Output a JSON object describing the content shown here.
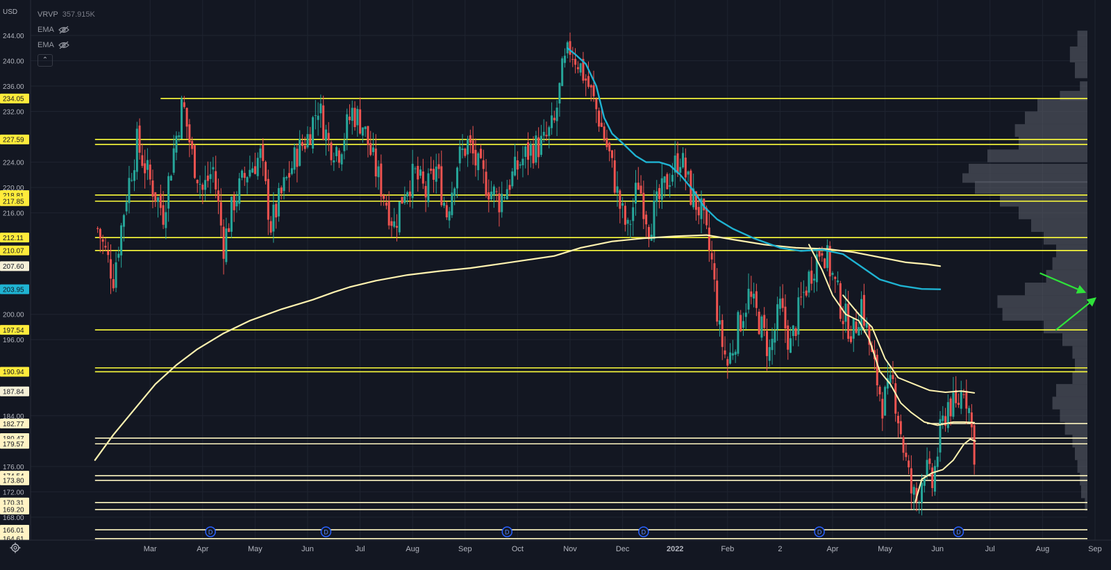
{
  "currency": "USD",
  "legend": [
    {
      "name": "VRVP",
      "value": "357.915K",
      "eye": false
    },
    {
      "name": "EMA",
      "value": "",
      "eye": true
    },
    {
      "name": "EMA",
      "value": "",
      "eye": true
    }
  ],
  "collapse_glyph": "⌃",
  "chart_data": {
    "type": "line",
    "xlabel": "",
    "ylabel": "",
    "ylim": [
      164.5,
      246.5
    ],
    "price_ticks": [
      244.0,
      240.0,
      236.0,
      232.0,
      224.0,
      220.0,
      216.0,
      200.0,
      196.0,
      184.0,
      176.0,
      172.0,
      168.0
    ],
    "time_labels": [
      {
        "label": "Mar",
        "m": 2
      },
      {
        "label": "Apr",
        "m": 3
      },
      {
        "label": "May",
        "m": 4
      },
      {
        "label": "Jun",
        "m": 5
      },
      {
        "label": "Jul",
        "m": 6
      },
      {
        "label": "Aug",
        "m": 7
      },
      {
        "label": "Sep",
        "m": 8
      },
      {
        "label": "Oct",
        "m": 9
      },
      {
        "label": "Nov",
        "m": 10
      },
      {
        "label": "Dec",
        "m": 11
      },
      {
        "label": "2022",
        "m": 12,
        "bold": true
      },
      {
        "label": "Feb",
        "m": 13
      },
      {
        "label": "2",
        "m": 14
      },
      {
        "label": "Apr",
        "m": 15
      },
      {
        "label": "May",
        "m": 16
      },
      {
        "label": "Jun",
        "m": 17
      },
      {
        "label": "Jul",
        "m": 18
      },
      {
        "label": "Aug",
        "m": 19
      },
      {
        "label": "Sep",
        "m": 20
      }
    ],
    "levels": [
      {
        "value": 234.05,
        "label": "234.05",
        "style": "yellow",
        "labeled": true,
        "start_m": 2.2
      },
      {
        "value": 227.59,
        "label": "227.59",
        "style": "yellow",
        "labeled": true,
        "start_m": 0.95
      },
      {
        "value": 226.8,
        "label": "",
        "style": "yellow",
        "labeled": false,
        "start_m": 0.95
      },
      {
        "value": 218.81,
        "label": "218.81",
        "style": "yellow",
        "labeled": true,
        "start_m": 0.95
      },
      {
        "value": 217.85,
        "label": "217.85",
        "style": "yellow",
        "labeled": true,
        "start_m": 0.95
      },
      {
        "value": 212.11,
        "label": "212.11",
        "style": "yellow",
        "labeled": true,
        "start_m": 0.95
      },
      {
        "value": 210.07,
        "label": "210.07",
        "style": "yellow",
        "labeled": true,
        "start_m": 0.95
      },
      {
        "value": 197.54,
        "label": "197.54",
        "style": "yellow",
        "labeled": true,
        "start_m": 0.95
      },
      {
        "value": 191.55,
        "label": "191.55",
        "style": "yellow",
        "labeled": false,
        "start_m": 0.95
      },
      {
        "value": 190.94,
        "label": "190.94",
        "style": "yellow",
        "labeled": true,
        "start_m": 0.95
      },
      {
        "value": 182.77,
        "label": "182.77",
        "style": "cream",
        "labeled": true,
        "start_m": 16.8
      },
      {
        "value": 180.47,
        "label": "180.47",
        "style": "cream",
        "labeled": true,
        "start_m": 0.95
      },
      {
        "value": 179.57,
        "label": "179.57",
        "style": "cream",
        "labeled": true,
        "start_m": 0.95
      },
      {
        "value": 174.54,
        "label": "174.54",
        "style": "cream",
        "labeled": true,
        "start_m": 0.95
      },
      {
        "value": 173.8,
        "label": "173.80",
        "style": "cream",
        "labeled": true,
        "start_m": 0.95
      },
      {
        "value": 170.31,
        "label": "170.31",
        "style": "cream",
        "labeled": true,
        "start_m": 0.95
      },
      {
        "value": 169.2,
        "label": "169.20",
        "style": "cream",
        "labeled": true,
        "start_m": 0.95
      },
      {
        "value": 166.01,
        "label": "166.01",
        "style": "cream",
        "labeled": true,
        "start_m": 0.95
      },
      {
        "value": 164.61,
        "label": "164.61",
        "style": "cream",
        "labeled": true,
        "start_m": 0.95
      }
    ],
    "current_price_labels": [
      {
        "value": 187.84,
        "label": "187.84",
        "style": "price"
      },
      {
        "value": 207.6,
        "label": "207.60",
        "style": "price"
      },
      {
        "value": 203.95,
        "label": "203.95",
        "style": "cyan"
      }
    ],
    "close_series": [
      {
        "m": 1.0,
        "c": 213.5
      },
      {
        "m": 1.3,
        "c": 206.0
      },
      {
        "m": 1.55,
        "c": 219.0
      },
      {
        "m": 1.75,
        "c": 227.0
      },
      {
        "m": 2.0,
        "c": 221.0
      },
      {
        "m": 2.25,
        "c": 216.0
      },
      {
        "m": 2.45,
        "c": 226.0
      },
      {
        "m": 2.62,
        "c": 233.5
      },
      {
        "m": 2.8,
        "c": 225.0
      },
      {
        "m": 3.0,
        "c": 219.5
      },
      {
        "m": 3.2,
        "c": 223.0
      },
      {
        "m": 3.4,
        "c": 211.0
      },
      {
        "m": 3.6,
        "c": 218.0
      },
      {
        "m": 3.85,
        "c": 222.5
      },
      {
        "m": 4.1,
        "c": 225.0
      },
      {
        "m": 4.3,
        "c": 214.0
      },
      {
        "m": 4.55,
        "c": 220.0
      },
      {
        "m": 4.8,
        "c": 225.5
      },
      {
        "m": 5.0,
        "c": 228.0
      },
      {
        "m": 5.2,
        "c": 233.0
      },
      {
        "m": 5.4,
        "c": 227.0
      },
      {
        "m": 5.6,
        "c": 226.0
      },
      {
        "m": 5.85,
        "c": 232.0
      },
      {
        "m": 6.05,
        "c": 230.0
      },
      {
        "m": 6.25,
        "c": 224.0
      },
      {
        "m": 6.45,
        "c": 219.0
      },
      {
        "m": 6.65,
        "c": 214.0
      },
      {
        "m": 6.85,
        "c": 220.0
      },
      {
        "m": 7.05,
        "c": 222.0
      },
      {
        "m": 7.25,
        "c": 219.0
      },
      {
        "m": 7.45,
        "c": 223.0
      },
      {
        "m": 7.65,
        "c": 216.0
      },
      {
        "m": 7.85,
        "c": 224.0
      },
      {
        "m": 8.05,
        "c": 227.0
      },
      {
        "m": 8.25,
        "c": 223.0
      },
      {
        "m": 8.45,
        "c": 220.0
      },
      {
        "m": 8.65,
        "c": 218.0
      },
      {
        "m": 8.85,
        "c": 221.0
      },
      {
        "m": 9.05,
        "c": 224.0
      },
      {
        "m": 9.25,
        "c": 226.0
      },
      {
        "m": 9.5,
        "c": 227.0
      },
      {
        "m": 9.7,
        "c": 230.0
      },
      {
        "m": 9.85,
        "c": 238.0
      },
      {
        "m": 10.0,
        "c": 242.0
      },
      {
        "m": 10.15,
        "c": 240.0
      },
      {
        "m": 10.35,
        "c": 236.0
      },
      {
        "m": 10.55,
        "c": 231.0
      },
      {
        "m": 10.75,
        "c": 225.0
      },
      {
        "m": 10.95,
        "c": 217.0
      },
      {
        "m": 11.1,
        "c": 213.0
      },
      {
        "m": 11.3,
        "c": 221.0
      },
      {
        "m": 11.5,
        "c": 214.0
      },
      {
        "m": 11.7,
        "c": 218.0
      },
      {
        "m": 11.9,
        "c": 222.0
      },
      {
        "m": 12.1,
        "c": 225.0
      },
      {
        "m": 12.3,
        "c": 219.0
      },
      {
        "m": 12.5,
        "c": 216.0
      },
      {
        "m": 12.7,
        "c": 208.0
      },
      {
        "m": 12.85,
        "c": 197.0
      },
      {
        "m": 13.0,
        "c": 192.0
      },
      {
        "m": 13.2,
        "c": 198.0
      },
      {
        "m": 13.4,
        "c": 203.0
      },
      {
        "m": 13.6,
        "c": 199.0
      },
      {
        "m": 13.8,
        "c": 194.0
      },
      {
        "m": 14.0,
        "c": 201.0
      },
      {
        "m": 14.2,
        "c": 195.0
      },
      {
        "m": 14.4,
        "c": 202.0
      },
      {
        "m": 14.6,
        "c": 207.0
      },
      {
        "m": 14.8,
        "c": 211.0
      },
      {
        "m": 15.0,
        "c": 206.0
      },
      {
        "m": 15.2,
        "c": 200.0
      },
      {
        "m": 15.4,
        "c": 197.0
      },
      {
        "m": 15.55,
        "c": 202.0
      },
      {
        "m": 15.75,
        "c": 193.0
      },
      {
        "m": 15.95,
        "c": 186.0
      },
      {
        "m": 16.15,
        "c": 189.0
      },
      {
        "m": 16.35,
        "c": 179.0
      },
      {
        "m": 16.5,
        "c": 172.0
      },
      {
        "m": 16.6,
        "c": 170.5
      },
      {
        "m": 16.75,
        "c": 176.0
      },
      {
        "m": 16.9,
        "c": 173.0
      },
      {
        "m": 17.05,
        "c": 181.0
      },
      {
        "m": 17.2,
        "c": 186.0
      },
      {
        "m": 17.35,
        "c": 185.0
      },
      {
        "m": 17.5,
        "c": 189.0
      },
      {
        "m": 17.6,
        "c": 185.0
      },
      {
        "m": 17.7,
        "c": 178.5
      }
    ],
    "ema_blue": [
      {
        "m": 9.95,
        "v": 242.0
      },
      {
        "m": 10.1,
        "v": 241.0
      },
      {
        "m": 10.3,
        "v": 239.5
      },
      {
        "m": 10.5,
        "v": 236.0
      },
      {
        "m": 10.65,
        "v": 231.0
      },
      {
        "m": 10.8,
        "v": 228.5
      },
      {
        "m": 11.0,
        "v": 227.0
      },
      {
        "m": 11.25,
        "v": 225.0
      },
      {
        "m": 11.45,
        "v": 224.0
      },
      {
        "m": 11.7,
        "v": 224.0
      },
      {
        "m": 11.9,
        "v": 223.5
      },
      {
        "m": 12.1,
        "v": 222.0
      },
      {
        "m": 12.35,
        "v": 219.5
      },
      {
        "m": 12.55,
        "v": 217.0
      },
      {
        "m": 12.8,
        "v": 215.0
      },
      {
        "m": 13.1,
        "v": 213.5
      },
      {
        "m": 13.5,
        "v": 212.0
      },
      {
        "m": 14.0,
        "v": 210.5
      },
      {
        "m": 14.4,
        "v": 210.0
      },
      {
        "m": 14.8,
        "v": 210.2
      },
      {
        "m": 15.2,
        "v": 209.5
      },
      {
        "m": 15.55,
        "v": 207.5
      },
      {
        "m": 15.9,
        "v": 205.5
      },
      {
        "m": 16.3,
        "v": 204.5
      },
      {
        "m": 16.7,
        "v": 204.0
      },
      {
        "m": 17.05,
        "v": 203.95
      }
    ],
    "ema_cream": [
      {
        "m": 0.95,
        "v": 177.0
      },
      {
        "m": 1.3,
        "v": 181.0
      },
      {
        "m": 1.7,
        "v": 185.0
      },
      {
        "m": 2.1,
        "v": 189.0
      },
      {
        "m": 2.5,
        "v": 192.0
      },
      {
        "m": 2.9,
        "v": 194.5
      },
      {
        "m": 3.4,
        "v": 197.0
      },
      {
        "m": 3.9,
        "v": 199.0
      },
      {
        "m": 4.5,
        "v": 200.8
      },
      {
        "m": 5.1,
        "v": 202.3
      },
      {
        "m": 5.5,
        "v": 203.5
      },
      {
        "m": 5.8,
        "v": 204.3
      },
      {
        "m": 6.3,
        "v": 205.3
      },
      {
        "m": 6.9,
        "v": 206.2
      },
      {
        "m": 7.5,
        "v": 206.8
      },
      {
        "m": 8.1,
        "v": 207.3
      },
      {
        "m": 8.7,
        "v": 208.0
      },
      {
        "m": 9.2,
        "v": 208.6
      },
      {
        "m": 9.7,
        "v": 209.2
      },
      {
        "m": 10.2,
        "v": 210.5
      },
      {
        "m": 10.8,
        "v": 211.5
      },
      {
        "m": 11.4,
        "v": 212.0
      },
      {
        "m": 12.0,
        "v": 212.3
      },
      {
        "m": 12.6,
        "v": 212.5
      },
      {
        "m": 13.1,
        "v": 211.8
      },
      {
        "m": 13.7,
        "v": 211.0
      },
      {
        "m": 14.3,
        "v": 210.5
      },
      {
        "m": 14.9,
        "v": 210.3
      },
      {
        "m": 15.4,
        "v": 209.8
      },
      {
        "m": 15.9,
        "v": 209.0
      },
      {
        "m": 16.4,
        "v": 208.2
      },
      {
        "m": 16.8,
        "v": 207.9
      },
      {
        "m": 17.05,
        "v": 207.6
      }
    ],
    "ema_short": [
      {
        "m": 14.55,
        "v": 211.0
      },
      {
        "m": 14.8,
        "v": 207.0
      },
      {
        "m": 15.0,
        "v": 203.0
      },
      {
        "m": 15.25,
        "v": 200.0
      },
      {
        "m": 15.5,
        "v": 199.0
      },
      {
        "m": 15.7,
        "v": 196.0
      },
      {
        "m": 15.9,
        "v": 191.0
      },
      {
        "m": 16.1,
        "v": 189.0
      },
      {
        "m": 16.3,
        "v": 186.0
      },
      {
        "m": 16.5,
        "v": 184.5
      },
      {
        "m": 16.75,
        "v": 183.0
      },
      {
        "m": 17.0,
        "v": 182.5
      },
      {
        "m": 17.3,
        "v": 183.0
      },
      {
        "m": 17.5,
        "v": 183.0
      },
      {
        "m": 17.7,
        "v": 182.9
      }
    ],
    "ema_mid": [
      {
        "m": 15.2,
        "v": 203.0
      },
      {
        "m": 15.5,
        "v": 200.0
      },
      {
        "m": 15.75,
        "v": 198.0
      },
      {
        "m": 16.0,
        "v": 193.0
      },
      {
        "m": 16.25,
        "v": 190.0
      },
      {
        "m": 16.55,
        "v": 189.0
      },
      {
        "m": 16.85,
        "v": 188.0
      },
      {
        "m": 17.15,
        "v": 187.7
      },
      {
        "m": 17.45,
        "v": 187.9
      },
      {
        "m": 17.7,
        "v": 187.6
      }
    ],
    "ema_low": [
      {
        "m": 16.58,
        "v": 170.5
      },
      {
        "m": 16.7,
        "v": 174.0
      },
      {
        "m": 16.9,
        "v": 175.0
      },
      {
        "m": 17.1,
        "v": 175.5
      },
      {
        "m": 17.3,
        "v": 177.0
      },
      {
        "m": 17.5,
        "v": 179.5
      },
      {
        "m": 17.62,
        "v": 180.3
      },
      {
        "m": 17.72,
        "v": 180.0
      }
    ],
    "event_markers": [
      {
        "m": 3.15,
        "label": "D"
      },
      {
        "m": 5.35,
        "label": "D"
      },
      {
        "m": 8.8,
        "label": "D"
      },
      {
        "m": 11.4,
        "label": "D"
      },
      {
        "m": 14.75,
        "label": "D"
      },
      {
        "m": 17.4,
        "label": "D"
      }
    ],
    "arrows": [
      {
        "from": {
          "m": 18.95,
          "v": 206.5
        },
        "to": {
          "m": 19.8,
          "v": 203.5
        }
      },
      {
        "from": {
          "m": 19.25,
          "v": 197.5
        },
        "to": {
          "m": 20.0,
          "v": 202.5
        }
      }
    ],
    "volume_profile": [
      {
        "v": 243.5,
        "w": 0.08
      },
      {
        "v": 241.0,
        "w": 0.14
      },
      {
        "v": 238.5,
        "w": 0.1
      },
      {
        "v": 236.0,
        "w": 0.06
      },
      {
        "v": 234.5,
        "w": 0.22
      },
      {
        "v": 233.0,
        "w": 0.4
      },
      {
        "v": 231.0,
        "w": 0.5
      },
      {
        "v": 229.0,
        "w": 0.58
      },
      {
        "v": 227.0,
        "w": 0.55
      },
      {
        "v": 225.0,
        "w": 0.8
      },
      {
        "v": 223.0,
        "w": 0.95
      },
      {
        "v": 221.5,
        "w": 1.0
      },
      {
        "v": 220.0,
        "w": 0.9
      },
      {
        "v": 218.0,
        "w": 0.7
      },
      {
        "v": 216.0,
        "w": 0.55
      },
      {
        "v": 214.0,
        "w": 0.45
      },
      {
        "v": 212.0,
        "w": 0.35
      },
      {
        "v": 210.0,
        "w": 0.25
      },
      {
        "v": 208.0,
        "w": 0.28
      },
      {
        "v": 206.0,
        "w": 0.33
      },
      {
        "v": 204.0,
        "w": 0.5
      },
      {
        "v": 202.0,
        "w": 0.72
      },
      {
        "v": 200.0,
        "w": 0.68
      },
      {
        "v": 198.0,
        "w": 0.35
      },
      {
        "v": 196.0,
        "w": 0.2
      },
      {
        "v": 194.0,
        "w": 0.12
      },
      {
        "v": 192.0,
        "w": 0.1
      },
      {
        "v": 190.0,
        "w": 0.12
      },
      {
        "v": 188.0,
        "w": 0.25
      },
      {
        "v": 186.0,
        "w": 0.28
      },
      {
        "v": 184.0,
        "w": 0.22
      },
      {
        "v": 182.0,
        "w": 0.18
      },
      {
        "v": 180.0,
        "w": 0.12
      },
      {
        "v": 178.0,
        "w": 0.1
      },
      {
        "v": 176.0,
        "w": 0.08
      },
      {
        "v": 174.0,
        "w": 0.06
      },
      {
        "v": 172.0,
        "w": 0.05
      },
      {
        "v": 170.0,
        "w": 0.02
      }
    ]
  }
}
